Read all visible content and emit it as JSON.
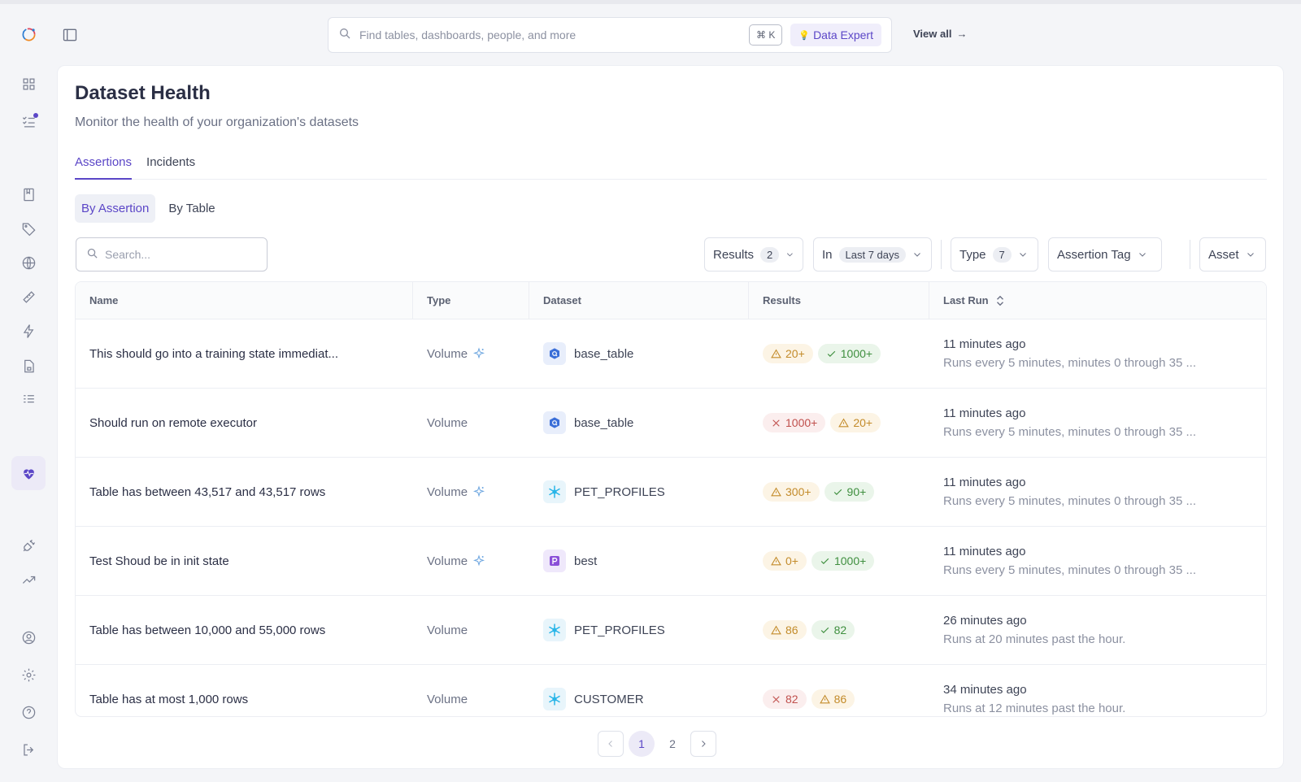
{
  "topbar": {
    "search_placeholder": "Find tables, dashboards, people, and more",
    "shortcut": "⌘ K",
    "expert_icon": "💡",
    "expert_label": "Data Expert",
    "view_all": "View all",
    "view_all_arrow": "→"
  },
  "page": {
    "title": "Dataset Health",
    "subtitle": "Monitor the health of your organization's datasets"
  },
  "tabs": [
    "Assertions",
    "Incidents"
  ],
  "segments": [
    "By Assertion",
    "By Table"
  ],
  "table_search_placeholder": "Search...",
  "filters": {
    "results_label": "Results",
    "results_count": "2",
    "in_label": "In",
    "in_value": "Last 7 days",
    "type_label": "Type",
    "type_count": "7",
    "tag_label": "Assertion Tag",
    "asset_label": "Asset"
  },
  "columns": [
    "Name",
    "Type",
    "Dataset",
    "Results",
    "Last Run"
  ],
  "rows": [
    {
      "name": "This should go into a training state immediat...",
      "type": "Volume",
      "smart": true,
      "dataset": "base_table",
      "ds_icon": "bigquery-icon",
      "r1": "20+",
      "r1k": "warn",
      "r2": "1000+",
      "r2k": "ok",
      "time": "11 minutes ago",
      "schedule": "Runs every 5 minutes, minutes 0 through 35 ..."
    },
    {
      "name": "Should run on remote executor",
      "type": "Volume",
      "smart": false,
      "dataset": "base_table",
      "ds_icon": "bigquery-icon",
      "r1": "1000+",
      "r1k": "fail",
      "r2": "20+",
      "r2k": "warn",
      "time": "11 minutes ago",
      "schedule": "Runs every 5 minutes, minutes 0 through 35 ..."
    },
    {
      "name": "Table has between 43,517 and 43,517 rows",
      "type": "Volume",
      "smart": true,
      "dataset": "PET_PROFILES",
      "ds_icon": "snowflake-icon",
      "r1": "300+",
      "r1k": "warn",
      "r2": "90+",
      "r2k": "ok",
      "time": "11 minutes ago",
      "schedule": "Runs every 5 minutes, minutes 0 through 35 ..."
    },
    {
      "name": "Test Shoud be in init state",
      "type": "Volume",
      "smart": true,
      "dataset": "best",
      "ds_icon": "postgres-icon",
      "r1": "0+",
      "r1k": "warn",
      "r2": "1000+",
      "r2k": "ok",
      "time": "11 minutes ago",
      "schedule": "Runs every 5 minutes, minutes 0 through 35 ..."
    },
    {
      "name": "Table has between 10,000 and 55,000 rows",
      "type": "Volume",
      "smart": false,
      "dataset": "PET_PROFILES",
      "ds_icon": "snowflake-icon",
      "r1": "86",
      "r1k": "warn",
      "r2": "82",
      "r2k": "ok",
      "time": "26 minutes ago",
      "schedule": "Runs at 20 minutes past the hour."
    },
    {
      "name": "Table has at most 1,000 rows",
      "type": "Volume",
      "smart": false,
      "dataset": "CUSTOMER",
      "ds_icon": "snowflake-icon",
      "r1": "82",
      "r1k": "fail",
      "r2": "86",
      "r2k": "warn",
      "time": "34 minutes ago",
      "schedule": "Runs at 12 minutes past the hour."
    }
  ],
  "pagination": {
    "pages": [
      "1",
      "2"
    ],
    "current": "1"
  },
  "colors": {
    "accent": "#5b46c7",
    "warn": "#c38b2a",
    "ok": "#3f8f3f",
    "fail": "#c0504d"
  }
}
